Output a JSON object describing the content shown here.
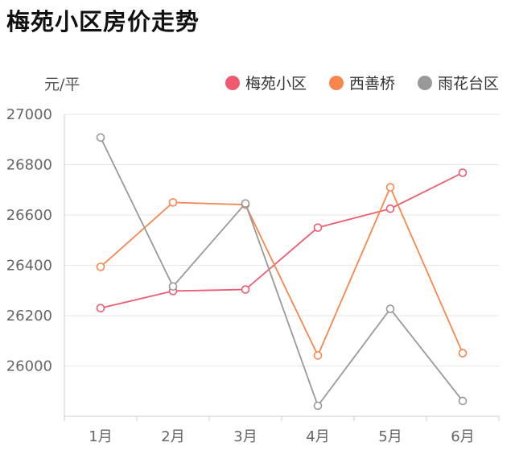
{
  "chart_data": {
    "type": "line",
    "title": "梅苑小区房价走势",
    "unit_label": "元/平",
    "categories": [
      "1月",
      "2月",
      "3月",
      "4月",
      "5月",
      "6月"
    ],
    "yticks": [
      "27000",
      "26800",
      "26600",
      "26400",
      "26200",
      "26000"
    ],
    "ylim": [
      25800,
      27000
    ],
    "grid": true,
    "legend_position": "top-right",
    "series": [
      {
        "name": "梅苑小区",
        "color": "#ee5a6f",
        "values": [
          26230,
          26298,
          26304,
          26550,
          26625,
          26768
        ]
      },
      {
        "name": "西善桥",
        "color": "#f7864e",
        "values": [
          26394,
          26650,
          26641,
          26042,
          26710,
          26051
        ]
      },
      {
        "name": "雨花台区",
        "color": "#999999",
        "values": [
          26908,
          26316,
          26646,
          25842,
          26227,
          25861
        ]
      }
    ]
  }
}
